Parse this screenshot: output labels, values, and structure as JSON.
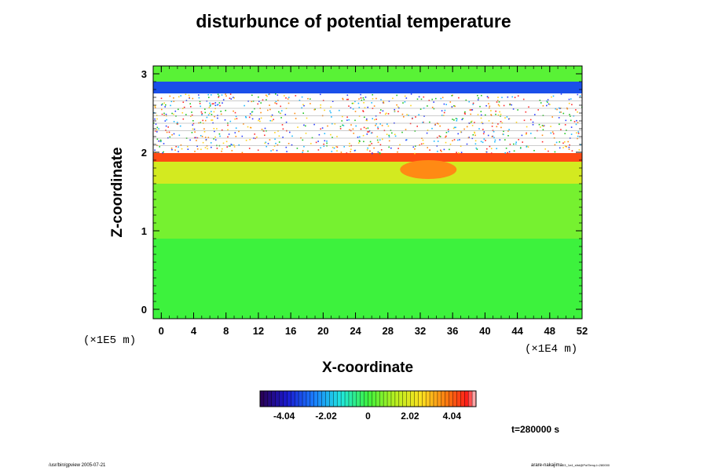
{
  "chart_data": {
    "type": "heatmap",
    "title": "disturbunce of potential temperature",
    "xlabel": "X-coordinate",
    "ylabel": "Z-coordinate",
    "x_multiplier": "(×1E4 m)",
    "y_multiplier": "(×1E5 m)",
    "xlim": [
      -1,
      52
    ],
    "ylim": [
      -0.12,
      3.1
    ],
    "x_ticks": [
      "0",
      "4",
      "8",
      "12",
      "16",
      "20",
      "24",
      "28",
      "32",
      "36",
      "40",
      "44",
      "48",
      "52"
    ],
    "y_ticks": [
      "0",
      "1",
      "2",
      "3"
    ],
    "colorbar": {
      "range": [
        -5.2,
        5.2
      ],
      "tick_labels": [
        "-4.04",
        "-2.02",
        "0",
        "2.02",
        "4.04"
      ],
      "tick_values": [
        -4.04,
        -2.02,
        0,
        2.02,
        4.04
      ]
    },
    "colors": {
      "background_field": "#3df23d",
      "warm_band": "#ff3b1a",
      "cold_band": "#2a3cff"
    },
    "field_bands": [
      {
        "z_min": -0.12,
        "z_max": 0.9,
        "value": 0.0
      },
      {
        "z_min": 0.9,
        "z_max": 1.6,
        "value": 0.6
      },
      {
        "z_min": 1.6,
        "z_max": 1.88,
        "value": 1.8
      },
      {
        "z_min": 1.88,
        "z_max": 1.99,
        "value": 4.3
      },
      {
        "z_min": 1.99,
        "z_max": 2.75,
        "value": null
      },
      {
        "z_min": 2.75,
        "z_max": 2.9,
        "value": -3.2
      },
      {
        "z_min": 2.9,
        "z_max": 3.1,
        "value": 0.3
      }
    ],
    "annotations": {
      "time": "t=280000 s"
    }
  },
  "footer": {
    "left": "/usr/bin/gpview 2005-07-21",
    "right_main": "arare-nakajima",
    "right_sub": "03_1e4_sfrd@PotTemp,t=280000"
  }
}
